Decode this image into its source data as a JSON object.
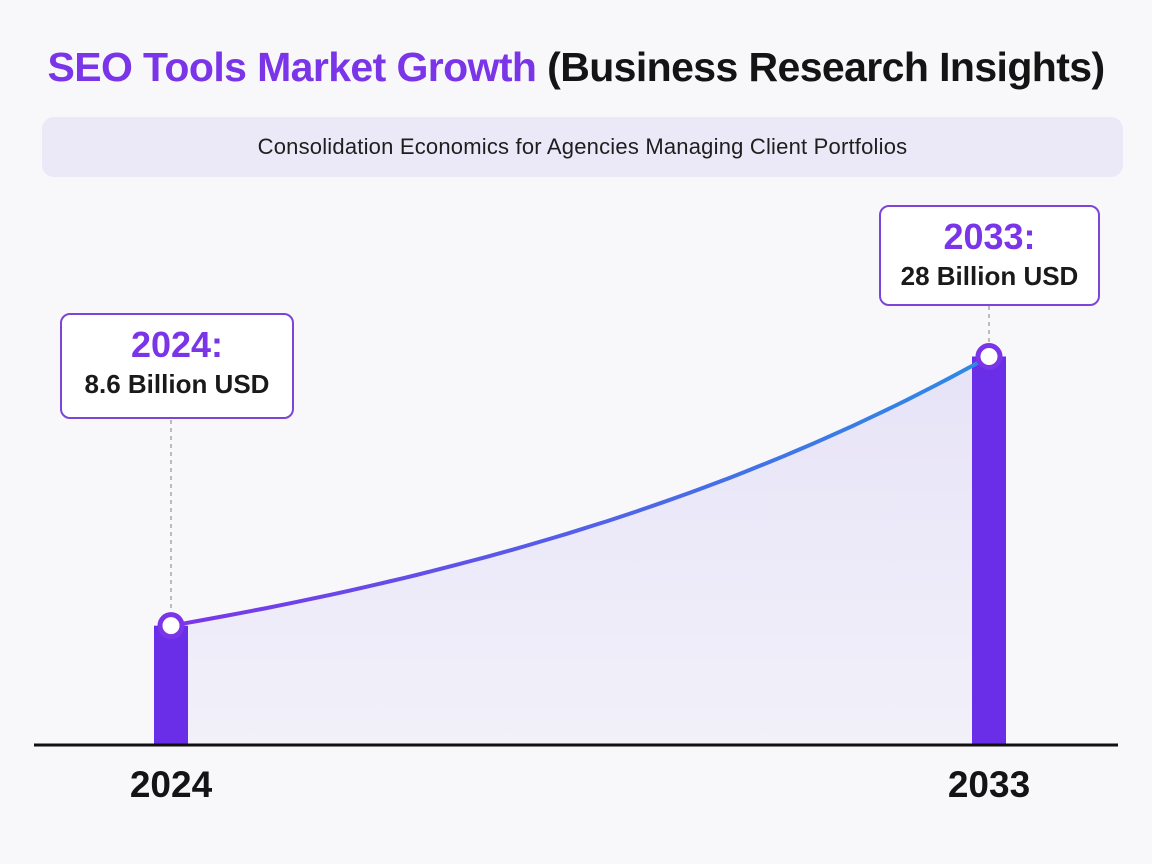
{
  "header": {
    "title_main": "SEO Tools Market Growth",
    "title_source": "(Business Research Insights)",
    "subtitle": "Consolidation Economics for Agencies Managing Client Portfolios"
  },
  "colors": {
    "accent": "#7b35e8",
    "bar": "#6a2de8",
    "line_start": "#7b35e8",
    "line_end": "#2b8be6",
    "area_fill": "#e6e2f8",
    "axis": "#111111"
  },
  "callouts": [
    {
      "year_label": "2024:",
      "value_label": "8.6 Billion USD"
    },
    {
      "year_label": "2033:",
      "value_label": "28 Billion USD"
    }
  ],
  "chart_data": {
    "type": "area",
    "title": "SEO Tools Market Growth",
    "categories": [
      "2024",
      "2033"
    ],
    "x": [
      2024,
      2033
    ],
    "series": [
      {
        "values": [
          8.6,
          28
        ]
      }
    ],
    "units": "Billion USD",
    "ylim": [
      0,
      40
    ],
    "grid": false,
    "legend": "none"
  }
}
